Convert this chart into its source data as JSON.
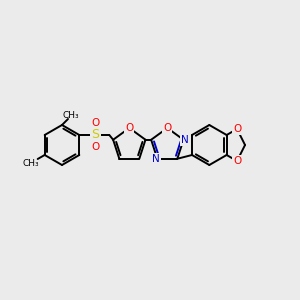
{
  "background_color": "#ebebeb",
  "bond_color": "#000000",
  "oxygen_color": "#ff0000",
  "nitrogen_color": "#0000cd",
  "sulfur_color": "#cccc00",
  "figsize": [
    3.0,
    3.0
  ],
  "dpi": 100,
  "xlim": [
    0,
    300
  ],
  "ylim": [
    0,
    300
  ]
}
